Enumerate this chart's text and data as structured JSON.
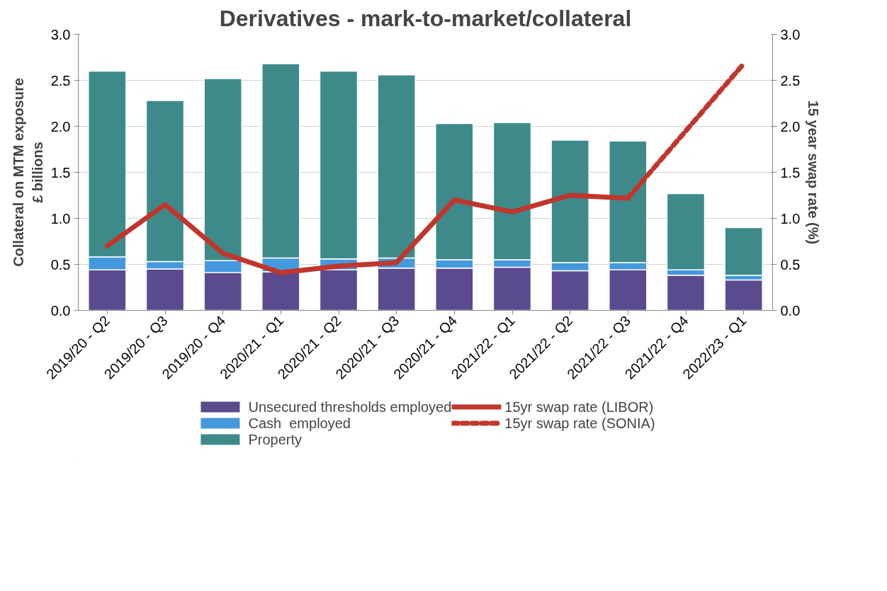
{
  "chart_data": {
    "type": "bar",
    "title": "Derivatives - mark-to-market/collateral",
    "ylabel": "Collateral on MTM exposure\n£ billions",
    "y2label": "15 year swap rate (%)",
    "categories": [
      "2019/20 - Q2",
      "2019/20 - Q3",
      "2019/20 - Q4",
      "2020/21 - Q1",
      "2020/21 - Q2",
      "2020/21 - Q3",
      "2020/21 - Q4",
      "2021/22 - Q1",
      "2021/22 - Q2",
      "2021/22 - Q3",
      "2021/22 - Q4",
      "2022/23 - Q1"
    ],
    "stacked": true,
    "ylim": [
      0,
      3
    ],
    "yticks": [
      {
        "value": 0,
        "label": "0.0"
      },
      {
        "value": 0.5,
        "label": "0.5"
      },
      {
        "value": 1,
        "label": "1.0"
      },
      {
        "value": 1.5,
        "label": "1.5"
      },
      {
        "value": 2,
        "label": "2.0"
      },
      {
        "value": 2.5,
        "label": "2.5"
      },
      {
        "value": 3,
        "label": "3.0"
      }
    ],
    "y2lim": [
      0,
      3
    ],
    "y2ticks": [
      {
        "value": 0,
        "label": "0.0"
      },
      {
        "value": 0.5,
        "label": "0.5"
      },
      {
        "value": 1,
        "label": "1.0"
      },
      {
        "value": 1.5,
        "label": "1.5"
      },
      {
        "value": 2,
        "label": "2.0"
      },
      {
        "value": 2.5,
        "label": "2.5"
      },
      {
        "value": 3,
        "label": "3.0"
      }
    ],
    "grid": "y",
    "legend": "bottom",
    "series": [
      {
        "name": "Unsecured thresholds employed",
        "color": "#5b4a8e",
        "values": [
          0.44,
          0.45,
          0.41,
          0.42,
          0.44,
          0.46,
          0.46,
          0.47,
          0.43,
          0.44,
          0.38,
          0.33
        ]
      },
      {
        "name": "Cash  employed",
        "color": "#4499dd",
        "values": [
          0.14,
          0.08,
          0.13,
          0.15,
          0.12,
          0.11,
          0.09,
          0.08,
          0.09,
          0.08,
          0.06,
          0.05
        ]
      },
      {
        "name": "Property",
        "color": "#3e8a8a",
        "values": [
          2.02,
          1.75,
          1.98,
          2.11,
          2.04,
          1.99,
          1.48,
          1.49,
          1.33,
          1.32,
          0.83,
          0.52
        ]
      },
      {
        "name": "15yr swap rate (LIBOR)",
        "type": "line",
        "axis": "y2",
        "color": "#c0362c",
        "line_style": "solid",
        "values": [
          0.7,
          1.15,
          0.62,
          0.41,
          0.48,
          0.52,
          1.2,
          1.07,
          1.25,
          1.22,
          null,
          null
        ]
      },
      {
        "name": "15yr swap rate (SONIA)",
        "type": "line",
        "axis": "y2",
        "color": "#c0362c",
        "line_style": "dashed",
        "values": [
          null,
          null,
          null,
          null,
          null,
          null,
          null,
          null,
          null,
          1.22,
          1.95,
          2.68
        ]
      }
    ]
  }
}
